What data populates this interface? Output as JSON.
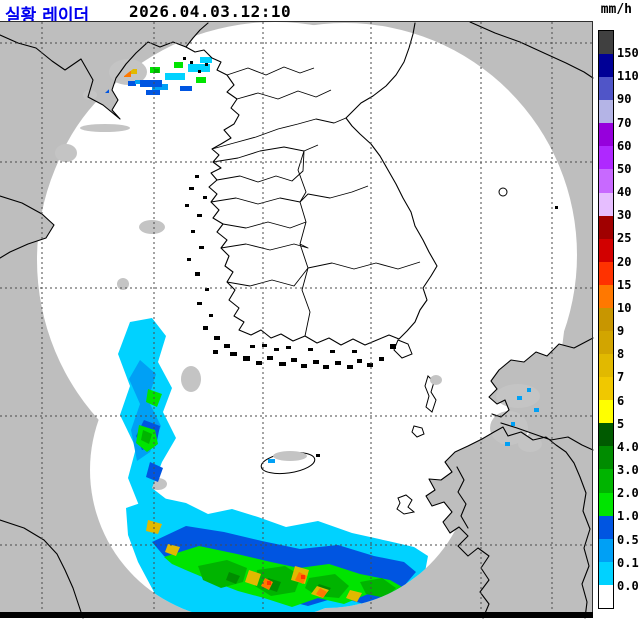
{
  "header": {
    "title": "실황 레이더",
    "title_color": "#0000F0",
    "timestamp": "2026.04.03.12:10"
  },
  "legend": {
    "unit": "mm/h",
    "colors": [
      "#404040",
      "#000096",
      "#5055C8",
      "#B4B4E6",
      "#9600DC",
      "#AF28FF",
      "#C869FF",
      "#E6BEFF",
      "#A00000",
      "#D20000",
      "#FF3200",
      "#FF7800",
      "#C89600",
      "#D2A500",
      "#E1B900",
      "#F0C800",
      "#FFFF00",
      "#005A00",
      "#008C00",
      "#00B400",
      "#00E400",
      "#0055E1",
      "#00A0F5",
      "#00D2FF",
      "#FFFFFF"
    ],
    "labels": [
      "150",
      "110",
      "90",
      "70",
      "60",
      "50",
      "40",
      "30",
      "25",
      "20",
      "15",
      "10",
      "9",
      "8",
      "7",
      "6",
      "5",
      "4.0",
      "3.0",
      "2.0",
      "1.0",
      "0.5",
      "0.1",
      "0.0"
    ]
  },
  "map": {
    "background_color": "#BEBEBE",
    "coverage_color": "#FFFFFF",
    "coastline_color": "#000000",
    "weak_echo_color": "#C4C4C4",
    "graticule": {
      "color": "#4A4A4A",
      "parallels_y": [
        43,
        162,
        288,
        416,
        545
      ],
      "meridians_x": [
        42,
        154,
        263,
        371,
        481,
        552
      ]
    }
  }
}
